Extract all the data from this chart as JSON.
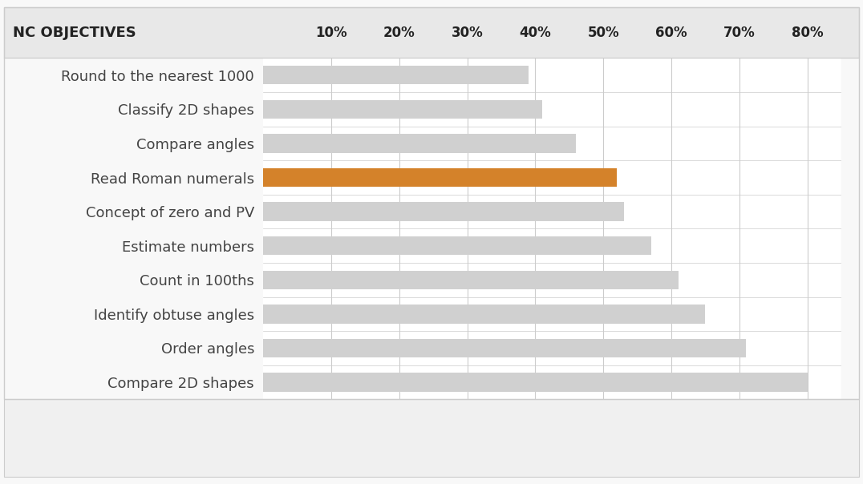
{
  "categories": [
    "Round to the nearest 1000",
    "Classify 2D shapes",
    "Compare angles",
    "Read Roman numerals",
    "Concept of zero and PV",
    "Estimate numbers",
    "Count in 100ths",
    "Identify obtuse angles",
    "Order angles",
    "Compare 2D shapes"
  ],
  "values": [
    39,
    41,
    46,
    52,
    53,
    57,
    61,
    65,
    71,
    80
  ],
  "bar_colors": [
    "#d0d0d0",
    "#d0d0d0",
    "#d0d0d0",
    "#d4822a",
    "#d0d0d0",
    "#d0d0d0",
    "#d0d0d0",
    "#d0d0d0",
    "#d0d0d0",
    "#d0d0d0"
  ],
  "header_label": "NC OBJECTIVES",
  "x_ticks": [
    10,
    20,
    30,
    40,
    50,
    60,
    70,
    80
  ],
  "x_tick_labels": [
    "10%",
    "20%",
    "30%",
    "40%",
    "50%",
    "60%",
    "70%",
    "80%"
  ],
  "xlim_min": 0,
  "xlim_max": 85,
  "background_color": "#f8f8f8",
  "header_bg_color": "#e8e8e8",
  "plot_bg_color": "#ffffff",
  "footer_bg_color": "#f0f0f0",
  "border_color": "#cccccc",
  "grid_color": "#cccccc",
  "text_color": "#444444",
  "header_text_color": "#222222",
  "header_fontsize": 13,
  "tick_fontsize": 12,
  "label_fontsize": 13,
  "bar_height": 0.55
}
